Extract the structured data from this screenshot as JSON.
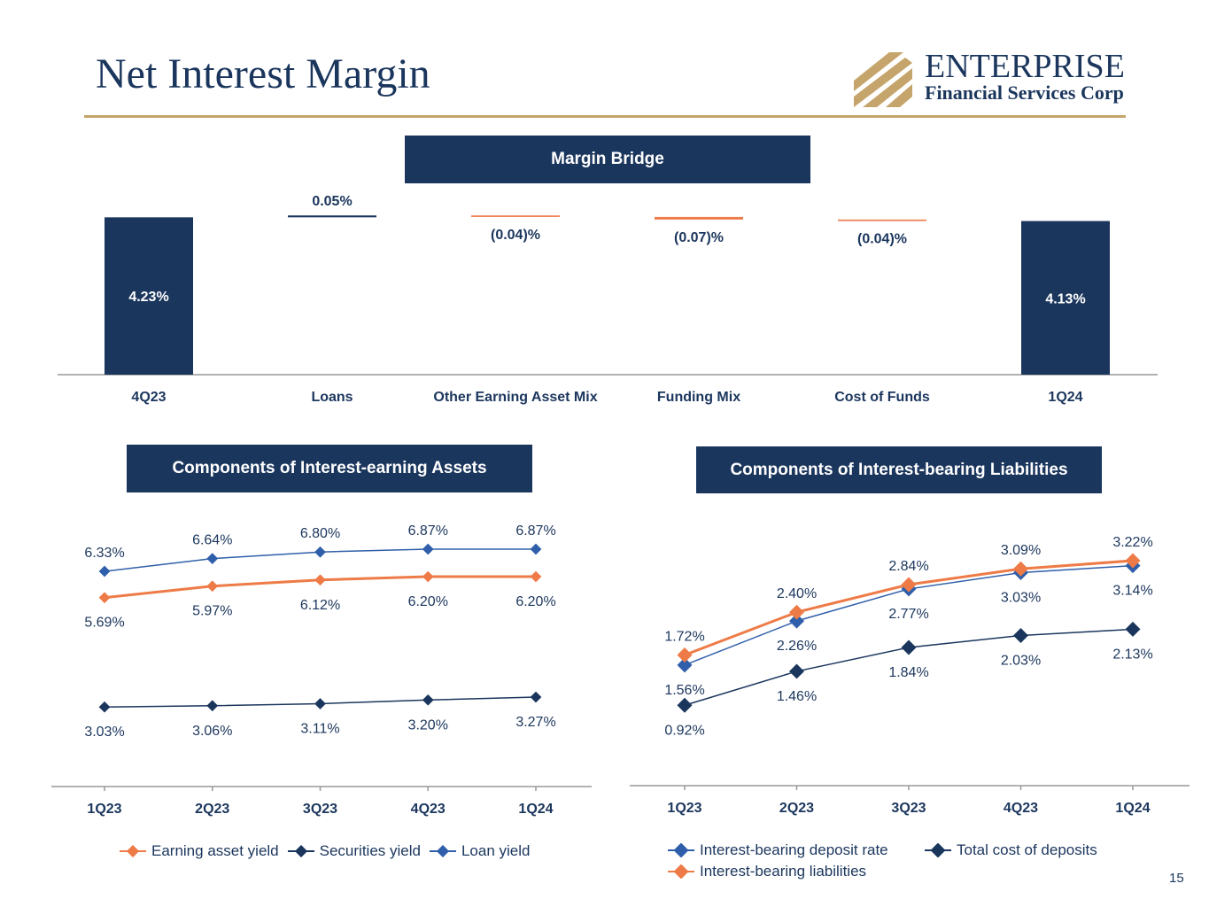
{
  "page": {
    "title": "Net Interest Margin",
    "page_number": "15",
    "logo": {
      "name": "ENTERPRISE",
      "subtitle": "Financial Services Corp"
    },
    "colors": {
      "navy": "#1b365d",
      "orange": "#ee7b47",
      "blue": "#2f5faa",
      "gold": "#c5a56b"
    }
  },
  "chart_data": [
    {
      "type": "bar",
      "title": "Margin Bridge",
      "categories": [
        "4Q23",
        "Loans",
        "Other Earning Asset Mix",
        "Funding Mix",
        "Cost of Funds",
        "1Q24"
      ],
      "values": [
        4.23,
        0.05,
        -0.04,
        -0.07,
        -0.04,
        4.13
      ],
      "labels": [
        "4.23%",
        "0.05%",
        "(0.04)%",
        "(0.07)%",
        "(0.04)%",
        "4.13%"
      ],
      "kinds": [
        "total",
        "delta",
        "delta",
        "delta",
        "delta",
        "total"
      ]
    },
    {
      "type": "line",
      "title": "Components of Interest-earning Assets",
      "categories": [
        "1Q23",
        "2Q23",
        "3Q23",
        "4Q23",
        "1Q24"
      ],
      "ylim": [
        2.0,
        7.3
      ],
      "series": [
        {
          "name": "Earning asset yield",
          "color": "#ee7b47",
          "values": [
            5.69,
            5.97,
            6.12,
            6.2,
            6.2
          ],
          "labels": [
            "5.69%",
            "5.97%",
            "6.12%",
            "6.20%",
            "6.20%"
          ],
          "label_pos": "below"
        },
        {
          "name": "Securities yield",
          "color": "#1b365d",
          "values": [
            3.03,
            3.06,
            3.11,
            3.2,
            3.27
          ],
          "labels": [
            "3.03%",
            "3.06%",
            "3.11%",
            "3.20%",
            "3.27%"
          ],
          "label_pos": "below"
        },
        {
          "name": "Loan yield",
          "color": "#2f5faa",
          "values": [
            6.33,
            6.64,
            6.8,
            6.87,
            6.87
          ],
          "labels": [
            "6.33%",
            "6.64%",
            "6.80%",
            "6.87%",
            "6.87%"
          ],
          "label_pos": "above"
        }
      ]
    },
    {
      "type": "line",
      "title": "Components of Interest-bearing Liabilities",
      "categories": [
        "1Q23",
        "2Q23",
        "3Q23",
        "4Q23",
        "1Q24"
      ],
      "ylim": [
        -0.4,
        3.6
      ],
      "series": [
        {
          "name": "Interest-bearing deposit rate",
          "color": "#2f5faa",
          "values": [
            1.56,
            2.26,
            2.77,
            3.03,
            3.14
          ],
          "labels": [
            "1.56%",
            "2.26%",
            "2.77%",
            "3.03%",
            "3.14%"
          ],
          "label_pos": "below"
        },
        {
          "name": "Total cost of deposits",
          "color": "#1b365d",
          "values": [
            0.92,
            1.46,
            1.84,
            2.03,
            2.13
          ],
          "labels": [
            "0.92%",
            "1.46%",
            "1.84%",
            "2.03%",
            "2.13%"
          ],
          "label_pos": "below"
        },
        {
          "name": "Interest-bearing liabilities",
          "color": "#ee7b47",
          "values": [
            1.72,
            2.4,
            2.84,
            3.09,
            3.22
          ],
          "labels": [
            "1.72%",
            "2.40%",
            "2.84%",
            "3.09%",
            "3.22%"
          ],
          "label_pos": "above"
        }
      ]
    }
  ]
}
